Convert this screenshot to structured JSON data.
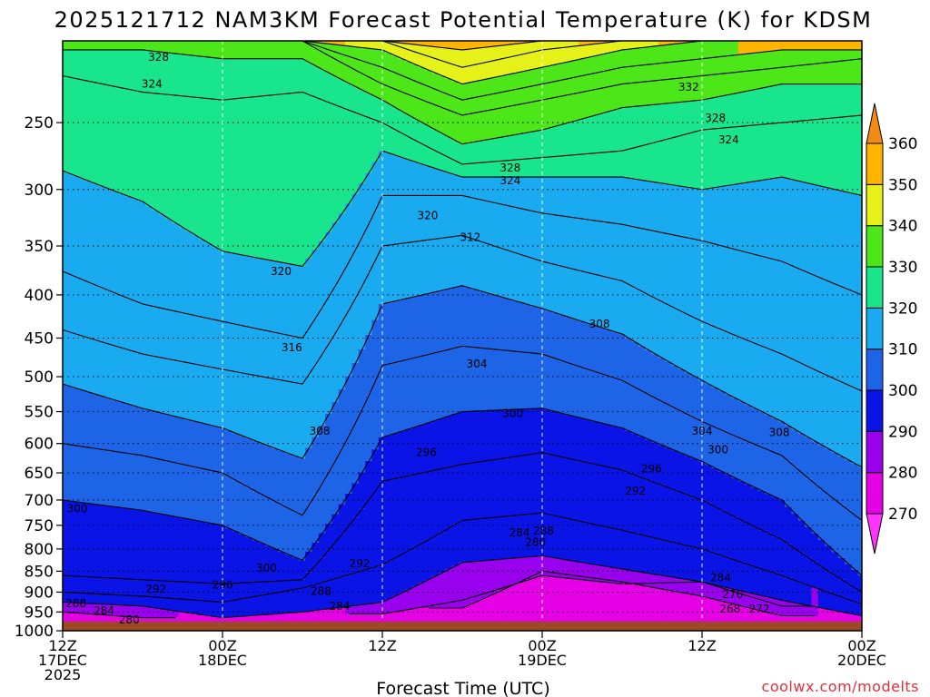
{
  "chart_data": {
    "type": "heatmap",
    "title": "2025121712 NAM3KM Forecast Potential Temperature (K) for KDSM",
    "xlabel": "Forecast Time (UTC)",
    "ylabel": "",
    "credit": "coolwx.com/modelts",
    "x_range_hours": [
      0,
      60
    ],
    "x_ticks": [
      {
        "hour": 0,
        "lines": [
          "12Z",
          "17DEC",
          "2025"
        ]
      },
      {
        "hour": 12,
        "lines": [
          "00Z",
          "18DEC"
        ]
      },
      {
        "hour": 24,
        "lines": [
          "12Z"
        ]
      },
      {
        "hour": 36,
        "lines": [
          "00Z",
          "19DEC"
        ]
      },
      {
        "hour": 48,
        "lines": [
          "12Z"
        ]
      },
      {
        "hour": 60,
        "lines": [
          "00Z",
          "20DEC"
        ]
      }
    ],
    "y_range_hpa": [
      1000,
      200
    ],
    "y_scale": "log-pressure",
    "y_ticks": [
      250,
      300,
      350,
      400,
      450,
      500,
      550,
      600,
      650,
      700,
      750,
      800,
      850,
      900,
      950,
      1000
    ],
    "grid": true,
    "colorbar": {
      "placement": "right",
      "levels": [
        270,
        280,
        290,
        300,
        310,
        320,
        330,
        340,
        350,
        360
      ],
      "bins": [
        {
          "from": 260,
          "to": 270,
          "color": "#ff33ff"
        },
        {
          "from": 270,
          "to": 280,
          "color": "#e600e6"
        },
        {
          "from": 280,
          "to": 290,
          "color": "#9900ee"
        },
        {
          "from": 290,
          "to": 300,
          "color": "#0a14e6"
        },
        {
          "from": 300,
          "to": 310,
          "color": "#1e64e6"
        },
        {
          "from": 310,
          "to": 320,
          "color": "#19aaf0"
        },
        {
          "from": 320,
          "to": 330,
          "color": "#19e68c"
        },
        {
          "from": 330,
          "to": 340,
          "color": "#4ce619"
        },
        {
          "from": 340,
          "to": 350,
          "color": "#e6f019"
        },
        {
          "from": 350,
          "to": 360,
          "color": "#ffb400"
        },
        {
          "from": 360,
          "to": 370,
          "color": "#f08c14"
        }
      ]
    },
    "contour_interval_k": 2,
    "isentrope_pressure_hpa": {
      "hours": [
        0,
        6,
        12,
        18,
        24,
        30,
        36,
        42,
        48,
        54,
        60
      ],
      "lines": [
        {
          "theta": 280,
          "p": [
            null,
            null,
            null,
            null,
            null,
            940,
            850,
            875,
            910,
            960,
            null
          ]
        },
        {
          "theta": 284,
          "p": [
            950,
            965,
            null,
            null,
            955,
            920,
            860,
            880,
            875,
            935,
            null
          ]
        },
        {
          "theta": 288,
          "p": [
            925,
            935,
            965,
            950,
            925,
            830,
            815,
            845,
            875,
            920,
            960
          ]
        },
        {
          "theta": 292,
          "p": [
            900,
            910,
            925,
            890,
            835,
            740,
            725,
            760,
            800,
            860,
            930
          ]
        },
        {
          "theta": 296,
          "p": [
            860,
            870,
            880,
            870,
            665,
            635,
            615,
            645,
            700,
            780,
            900
          ]
        },
        {
          "theta": 300,
          "p": [
            700,
            720,
            750,
            825,
            590,
            550,
            545,
            575,
            630,
            700,
            860
          ]
        },
        {
          "theta": 304,
          "p": [
            600,
            620,
            650,
            730,
            485,
            460,
            470,
            505,
            565,
            620,
            740
          ]
        },
        {
          "theta": 308,
          "p": [
            510,
            545,
            575,
            625,
            410,
            390,
            415,
            445,
            505,
            565,
            640
          ]
        },
        {
          "theta": 312,
          "p": [
            440,
            470,
            490,
            510,
            350,
            340,
            365,
            385,
            430,
            470,
            520
          ]
        },
        {
          "theta": 316,
          "p": [
            375,
            410,
            430,
            450,
            305,
            305,
            320,
            330,
            345,
            365,
            400
          ]
        },
        {
          "theta": 320,
          "p": [
            285,
            310,
            355,
            370,
            270,
            290,
            290,
            290,
            300,
            290,
            305
          ]
        },
        {
          "theta": 324,
          "p": [
            220,
            230,
            235,
            230,
            250,
            280,
            275,
            270,
            255,
            250,
            245
          ]
        },
        {
          "theta": 328,
          "p": [
            205,
            205,
            210,
            210,
            235,
            265,
            255,
            240,
            235,
            225,
            225
          ]
        },
        {
          "theta": 332,
          "p": [
            200,
            200,
            200,
            200,
            225,
            245,
            235,
            225,
            220,
            215,
            210
          ]
        },
        {
          "theta": 336,
          "p": [
            null,
            null,
            null,
            200,
            215,
            235,
            225,
            215,
            210,
            205,
            205
          ]
        },
        {
          "theta": 340,
          "p": [
            null,
            null,
            null,
            200,
            205,
            225,
            215,
            205,
            200,
            null,
            null
          ]
        },
        {
          "theta": 344,
          "p": [
            null,
            null,
            null,
            null,
            200,
            215,
            205,
            200,
            null,
            null,
            null
          ]
        },
        {
          "theta": 350,
          "p": [
            null,
            null,
            null,
            null,
            200,
            205,
            200,
            null,
            null,
            null,
            null
          ]
        }
      ]
    },
    "surface_pressure_hpa": 975,
    "contour_labels": [
      {
        "text": "328",
        "hour": 7.2,
        "p": 209
      },
      {
        "text": "324",
        "hour": 6.7,
        "p": 225
      },
      {
        "text": "332",
        "hour": 47.0,
        "p": 227
      },
      {
        "text": "328",
        "hour": 49.0,
        "p": 247
      },
      {
        "text": "324",
        "hour": 50.0,
        "p": 262
      },
      {
        "text": "328",
        "hour": 33.6,
        "p": 283
      },
      {
        "text": "324",
        "hour": 33.6,
        "p": 293
      },
      {
        "text": "320",
        "hour": 27.4,
        "p": 322
      },
      {
        "text": "312",
        "hour": 30.6,
        "p": 342
      },
      {
        "text": "320",
        "hour": 16.4,
        "p": 375
      },
      {
        "text": "308",
        "hour": 40.3,
        "p": 433
      },
      {
        "text": "316",
        "hour": 17.2,
        "p": 462
      },
      {
        "text": "304",
        "hour": 31.1,
        "p": 483
      },
      {
        "text": "300",
        "hour": 33.8,
        "p": 553
      },
      {
        "text": "308",
        "hour": 19.3,
        "p": 580
      },
      {
        "text": "304",
        "hour": 48.0,
        "p": 580
      },
      {
        "text": "308",
        "hour": 53.8,
        "p": 582
      },
      {
        "text": "300",
        "hour": 49.2,
        "p": 610
      },
      {
        "text": "296",
        "hour": 27.3,
        "p": 615
      },
      {
        "text": "296",
        "hour": 44.2,
        "p": 643
      },
      {
        "text": "292",
        "hour": 43.0,
        "p": 683
      },
      {
        "text": "300",
        "hour": 1.1,
        "p": 717
      },
      {
        "text": "284",
        "hour": 34.3,
        "p": 765
      },
      {
        "text": "288",
        "hour": 36.1,
        "p": 762
      },
      {
        "text": "280",
        "hour": 35.5,
        "p": 786
      },
      {
        "text": "300",
        "hour": 15.3,
        "p": 843
      },
      {
        "text": "292",
        "hour": 22.3,
        "p": 833
      },
      {
        "text": "284",
        "hour": 49.4,
        "p": 865
      },
      {
        "text": "296",
        "hour": 12.0,
        "p": 882
      },
      {
        "text": "292",
        "hour": 7.0,
        "p": 892
      },
      {
        "text": "288",
        "hour": 19.4,
        "p": 898
      },
      {
        "text": "276",
        "hour": 50.3,
        "p": 906
      },
      {
        "text": "288",
        "hour": 1.0,
        "p": 928
      },
      {
        "text": "284",
        "hour": 20.8,
        "p": 935
      },
      {
        "text": "284",
        "hour": 3.1,
        "p": 947
      },
      {
        "text": "268",
        "hour": 50.1,
        "p": 942
      },
      {
        "text": "272",
        "hour": 52.3,
        "p": 942
      },
      {
        "text": "280",
        "hour": 5.0,
        "p": 971
      }
    ]
  }
}
